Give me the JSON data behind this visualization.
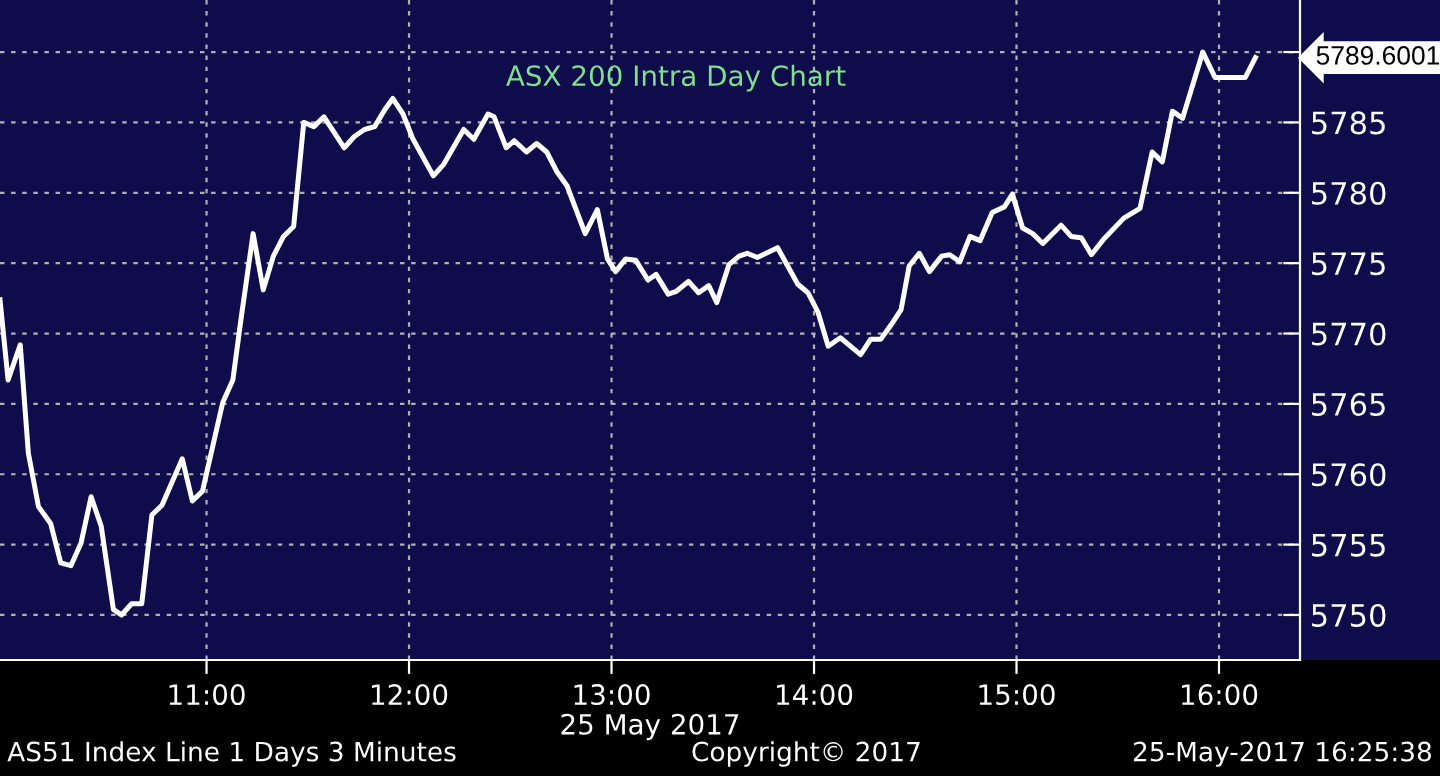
{
  "chart_data": {
    "type": "line",
    "title": "ASX 200 Intra Day Chart",
    "xlabel": "25 May 2017",
    "x": [
      9.98,
      10.02,
      10.08,
      10.12,
      10.17,
      10.23,
      10.28,
      10.33,
      10.38,
      10.43,
      10.48,
      10.54,
      10.58,
      10.63,
      10.68,
      10.73,
      10.78,
      10.88,
      10.93,
      10.98,
      11.08,
      11.13,
      11.17,
      11.23,
      11.28,
      11.33,
      11.38,
      11.43,
      11.48,
      11.53,
      11.58,
      11.68,
      11.73,
      11.78,
      11.83,
      11.88,
      11.92,
      11.97,
      12.02,
      12.12,
      12.17,
      12.27,
      12.32,
      12.39,
      12.42,
      12.48,
      12.52,
      12.58,
      12.63,
      12.68,
      12.73,
      12.78,
      12.87,
      12.93,
      12.98,
      13.02,
      13.07,
      13.12,
      13.18,
      13.22,
      13.28,
      13.32,
      13.38,
      13.43,
      13.48,
      13.52,
      13.58,
      13.63,
      13.67,
      13.72,
      13.82,
      13.87,
      13.92,
      13.97,
      14.02,
      14.07,
      14.13,
      14.23,
      14.28,
      14.33,
      14.38,
      14.43,
      14.47,
      14.52,
      14.57,
      14.63,
      14.67,
      14.72,
      14.77,
      14.82,
      14.88,
      14.94,
      14.98,
      15.03,
      15.08,
      15.13,
      15.22,
      15.27,
      15.32,
      15.37,
      15.43,
      15.53,
      15.61,
      15.67,
      15.72,
      15.77,
      15.82,
      15.92,
      15.98,
      16.13,
      16.18
    ],
    "series": [
      {
        "color": "#ffffff",
        "values": [
          5772.4,
          5766.7,
          5769.2,
          5761.5,
          5757.7,
          5756.5,
          5753.7,
          5753.5,
          5755.1,
          5758.4,
          5756.3,
          5750.4,
          5750.0,
          5750.8,
          5750.8,
          5757.1,
          5757.8,
          5761.1,
          5758.1,
          5758.8,
          5765.1,
          5766.7,
          5771.0,
          5777.1,
          5773.1,
          5775.5,
          5776.9,
          5777.6,
          5785.0,
          5784.7,
          5785.4,
          5783.2,
          5784.0,
          5784.5,
          5784.7,
          5785.9,
          5786.7,
          5785.6,
          5783.8,
          5781.2,
          5782.0,
          5784.5,
          5783.8,
          5785.6,
          5785.4,
          5783.2,
          5783.7,
          5782.9,
          5783.5,
          5782.9,
          5781.5,
          5780.5,
          5777.1,
          5778.8,
          5775.3,
          5774.4,
          5775.3,
          5775.2,
          5773.8,
          5774.2,
          5772.8,
          5773.0,
          5773.7,
          5772.9,
          5773.4,
          5772.2,
          5774.9,
          5775.5,
          5775.7,
          5775.4,
          5776.1,
          5774.8,
          5773.5,
          5772.9,
          5771.5,
          5769.1,
          5769.7,
          5768.5,
          5769.6,
          5769.6,
          5770.6,
          5771.7,
          5774.8,
          5775.7,
          5774.4,
          5775.5,
          5775.6,
          5775.1,
          5776.9,
          5776.6,
          5778.6,
          5779.0,
          5779.9,
          5777.5,
          5777.1,
          5776.4,
          5777.7,
          5776.9,
          5776.8,
          5775.6,
          5776.7,
          5778.2,
          5778.9,
          5782.9,
          5782.2,
          5785.8,
          5785.3,
          5790.0,
          5788.2,
          5788.2,
          5789.6
        ]
      }
    ],
    "xlim": [
      9.98,
      16.4
    ],
    "ylim": [
      5746.8,
      5793.7
    ],
    "xticks": [
      {
        "value": 11,
        "label": "11:00"
      },
      {
        "value": 12,
        "label": "12:00"
      },
      {
        "value": 13,
        "label": "13:00"
      },
      {
        "value": 14,
        "label": "14:00"
      },
      {
        "value": 15,
        "label": "15:00"
      },
      {
        "value": 16,
        "label": "16:00"
      }
    ],
    "yticks": [
      5750,
      5755,
      5760,
      5765,
      5770,
      5775,
      5780,
      5785,
      {
        "value": 5790,
        "label": null
      }
    ],
    "grid": true,
    "line_style": "solid",
    "marker": "none",
    "annotations": [
      "5789.6001",
      "AS51 Index Line 1 Days 3 Minutes",
      "Copyright© 2017",
      "25-May-2017 16:25:38"
    ]
  }
}
